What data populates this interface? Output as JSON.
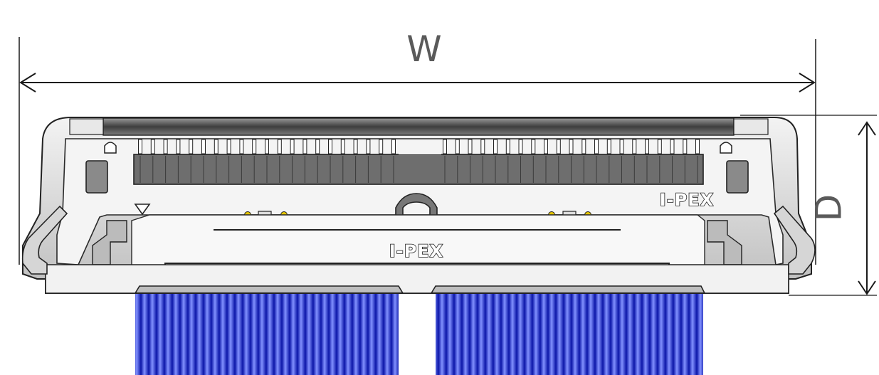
{
  "dimensions": {
    "width_label": "W",
    "depth_label": "D"
  },
  "markings": {
    "brand_top_right": "I-PEX",
    "brand_center": "I-PEX"
  },
  "colors": {
    "cable_blue": "#1a2bd6",
    "cable_highlight": "#7d8cff",
    "body_gray": "#6e6e6e",
    "outline": "#222222",
    "dimension_line": "#1a1a1a"
  }
}
